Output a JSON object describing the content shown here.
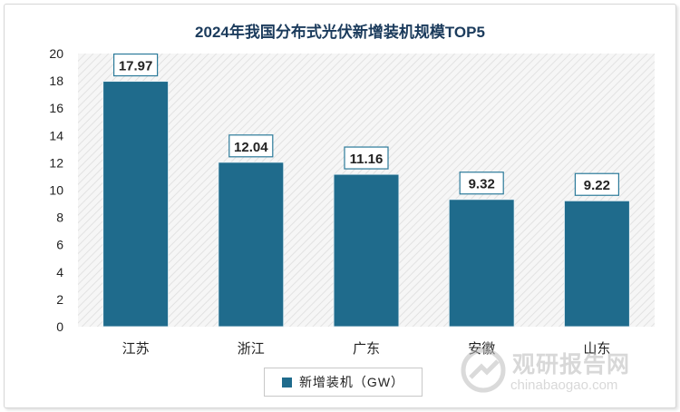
{
  "chart_data": {
    "type": "bar",
    "title": "2024年我国分布式光伏新增装机规模TOP5",
    "categories": [
      "江苏",
      "浙江",
      "广东",
      "安徽",
      "山东"
    ],
    "series": [
      {
        "name": "新增装机（GW）",
        "values": [
          17.97,
          12.04,
          11.16,
          9.32,
          9.22
        ]
      }
    ],
    "data_labels": [
      "17.97",
      "12.04",
      "11.16",
      "9.32",
      "9.22"
    ],
    "yticks": [
      "0",
      "2",
      "4",
      "6",
      "8",
      "10",
      "12",
      "14",
      "16",
      "18",
      "20"
    ],
    "ylim": [
      0,
      20
    ],
    "xlabel": "",
    "ylabel": "",
    "legend": "bottom",
    "grid": false,
    "bar_color": "#1f6b8c"
  },
  "watermark": {
    "cn": "观研报告网",
    "en": "chinabaogao.com"
  }
}
